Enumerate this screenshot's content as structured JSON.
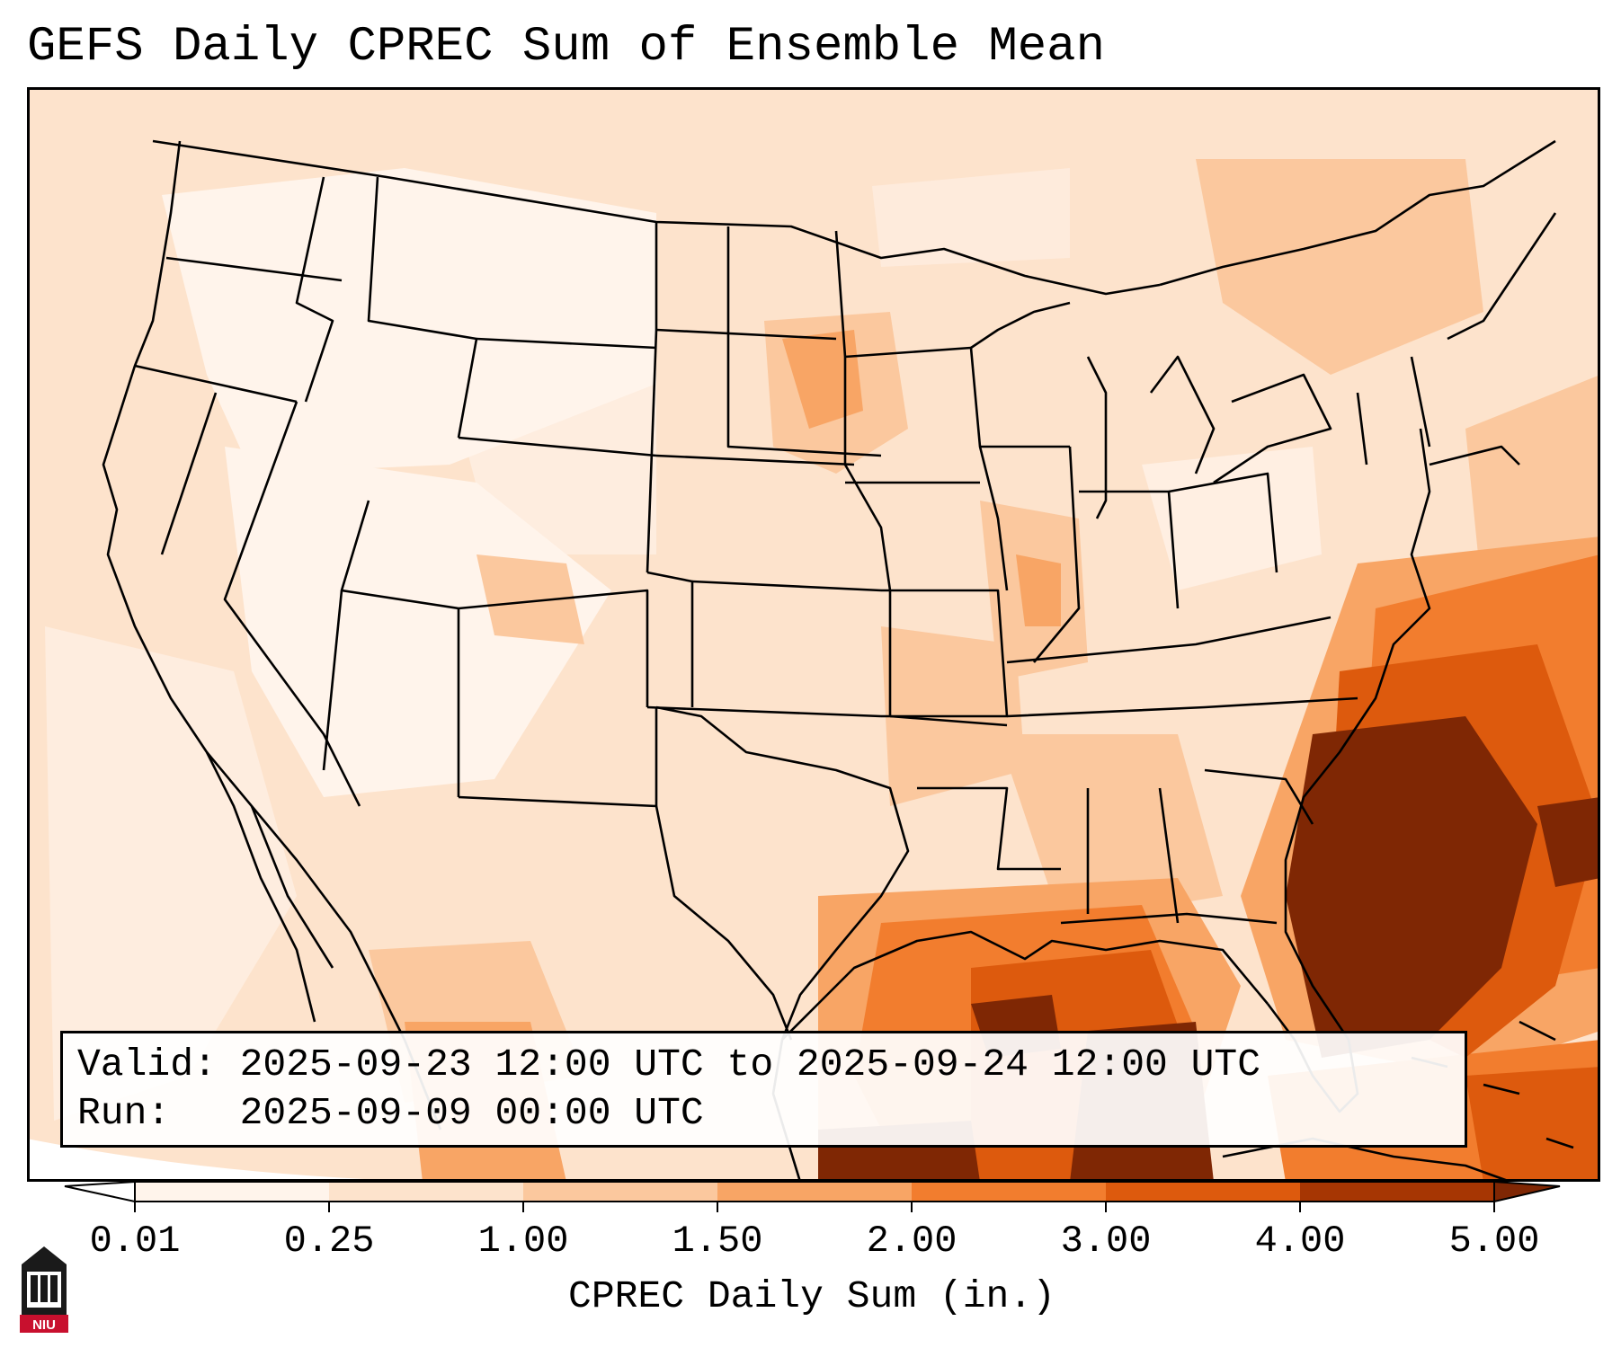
{
  "title": "GEFS Daily CPREC Sum of Ensemble Mean",
  "info": {
    "valid_line": "Valid: 2025-09-23 12:00 UTC to 2025-09-24 12:00 UTC",
    "run_line": "Run:   2025-09-09 00:00 UTC"
  },
  "colorbar": {
    "label": "CPREC Daily Sum (in.)",
    "ticks": [
      "0.01",
      "0.25",
      "1.00",
      "1.50",
      "2.00",
      "3.00",
      "4.00",
      "5.00"
    ],
    "colors": [
      "#fff4eb",
      "#fde3cc",
      "#fbc89e",
      "#f8a565",
      "#f27d2e",
      "#dd5a0d",
      "#a63603",
      "#7f2704"
    ]
  },
  "logo": {
    "text": "NIU",
    "icon": "niu-castle-logo-icon"
  }
}
